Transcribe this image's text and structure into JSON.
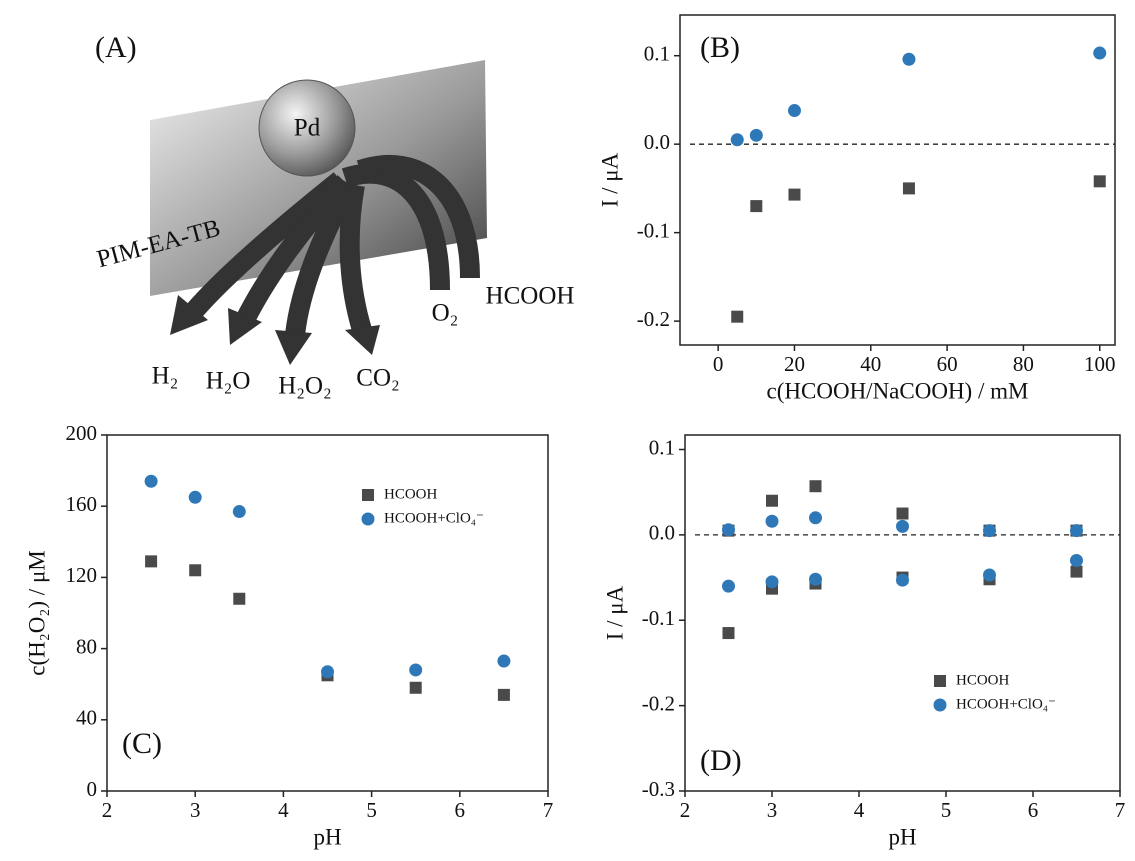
{
  "diagram": {
    "panel_label": "(A)",
    "particle": "Pd",
    "membrane": "PIM-EA-TB",
    "products": [
      "H₂",
      "H₂O",
      "H₂O₂",
      "CO₂"
    ],
    "reactants": [
      "O₂",
      "HCOOH"
    ]
  },
  "chart_data": [
    {
      "type": "scatter",
      "panel_label": "(B)",
      "xlabel": "c(HCOOH/NaCOOH) / mM",
      "ylabel": "I / μA",
      "x": [
        5,
        10,
        20,
        50,
        100
      ],
      "series": [
        {
          "name": "HCOOH",
          "color": "#4a4a4a",
          "marker": "square",
          "values": [
            -0.195,
            -0.07,
            -0.057,
            -0.05,
            -0.042
          ]
        },
        {
          "name": "HCOOH+ClO₄⁻",
          "color": "#2f78b8",
          "marker": "circle",
          "values": [
            0.005,
            0.01,
            0.038,
            0.096,
            0.103
          ]
        }
      ],
      "xlim": [
        -10,
        104
      ],
      "xticks": [
        0,
        20,
        40,
        60,
        80,
        100
      ],
      "ylim": [
        -0.227,
        0.146
      ],
      "yticks": [
        0.1,
        {
          "value": 0,
          "label": "0.0"
        },
        -0.1,
        -0.2
      ],
      "reference_line": 0,
      "legend": false
    },
    {
      "type": "scatter",
      "panel_label": "(C)",
      "xlabel": "pH",
      "ylabel": "c(H₂O₂) / μM",
      "x": [
        2.5,
        3,
        3.5,
        4.5,
        5.5,
        6.5
      ],
      "series": [
        {
          "name": "HCOOH",
          "color": "#4a4a4a",
          "marker": "square",
          "values": [
            129,
            124,
            108,
            65,
            58,
            54
          ]
        },
        {
          "name": "HCOOH+ClO₄⁻",
          "color": "#2f78b8",
          "marker": "circle",
          "values": [
            174,
            165,
            157,
            67,
            68,
            73
          ]
        }
      ],
      "xlim": [
        2,
        7
      ],
      "xticks": [
        2,
        3,
        4,
        5,
        6,
        7
      ],
      "ylim": [
        0,
        200
      ],
      "yticks": [
        0,
        40,
        80,
        120,
        160,
        200
      ],
      "legend": "upper right"
    },
    {
      "type": "scatter",
      "panel_label": "(D)",
      "xlabel": "pH",
      "ylabel": "I / μA",
      "x": [
        2.5,
        3,
        3.5,
        4.5,
        5.5,
        6.5,
        2.5,
        3,
        3.5,
        4.5,
        5.5,
        6.5
      ],
      "series": [
        {
          "name": "HCOOH",
          "color": "#4a4a4a",
          "marker": "square",
          "values": [
            0.005,
            0.04,
            0.057,
            0.025,
            0.005,
            0.005,
            -0.115,
            -0.063,
            -0.057,
            -0.05,
            -0.052,
            -0.043
          ]
        },
        {
          "name": "HCOOH+ClO₄⁻",
          "color": "#2f78b8",
          "marker": "circle",
          "values": [
            0.006,
            0.016,
            0.02,
            0.01,
            0.005,
            0.005,
            -0.06,
            -0.055,
            -0.052,
            -0.053,
            -0.047,
            -0.03
          ]
        }
      ],
      "xlim": [
        2,
        7
      ],
      "xticks": [
        2,
        3,
        4,
        5,
        6,
        7
      ],
      "ylim": [
        -0.3,
        0.117
      ],
      "yticks": [
        0.1,
        {
          "value": 0,
          "label": "0.0"
        },
        -0.1,
        -0.2,
        -0.3
      ],
      "reference_line": 0,
      "legend": "lower right"
    }
  ]
}
